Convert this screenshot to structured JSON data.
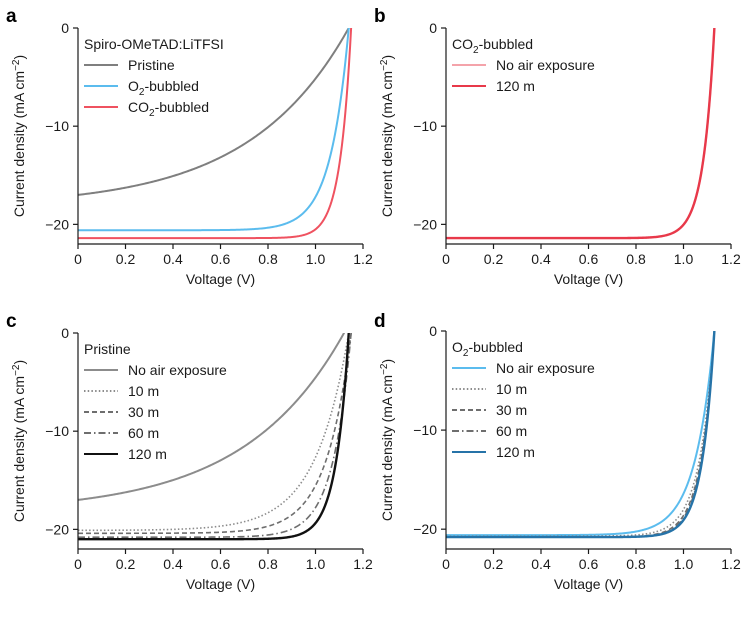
{
  "figure": {
    "panels": [
      {
        "letter": "a",
        "xlabel": "Voltage (V)",
        "ylabel_main": "Current density (mA cm",
        "ylabel_sup": "−2",
        "ylabel_end": ")",
        "legend_title": "Spiro-OMeTAD:LiTFSI"
      },
      {
        "letter": "b",
        "xlabel": "Voltage (V)",
        "ylabel_main": "Current density (mA cm",
        "ylabel_sup": "−2",
        "ylabel_end": ")",
        "legend_title_pre": "CO",
        "legend_title_sub": "2",
        "legend_title_post": "-bubbled"
      },
      {
        "letter": "c",
        "xlabel": "Voltage (V)",
        "ylabel_main": "Current density (mA cm",
        "ylabel_sup": "−2",
        "ylabel_end": ")",
        "legend_title": "Pristine"
      },
      {
        "letter": "d",
        "xlabel": "Voltage (V)",
        "ylabel_main": "Current density (mA cm",
        "ylabel_sup": "−2",
        "ylabel_end": ")",
        "legend_title_pre": "O",
        "legend_title_sub": "2",
        "legend_title_post": "-bubbled"
      }
    ]
  },
  "chart_data": [
    {
      "panel": "a",
      "type": "line",
      "xlabel": "Voltage (V)",
      "ylabel": "Current density (mA cm−2)",
      "xlim": [
        0,
        1.2
      ],
      "ylim": [
        -22,
        0
      ],
      "xticks": [
        "0",
        "0.2",
        "0.4",
        "0.6",
        "0.8",
        "1.0",
        "1.2"
      ],
      "yticks": [
        "0",
        "−10",
        "−20"
      ],
      "legend_title": "Spiro-OMeTAD:LiTFSI",
      "legend_position": "top-left",
      "series": [
        {
          "name": "Pristine",
          "label_pre": "Pristine",
          "label_sub": "",
          "label_post": "",
          "color": "#7f7f7f",
          "dash": "solid",
          "jsc": -17.0,
          "voc": 1.14,
          "ff": 0.4
        },
        {
          "name": "O2-bubbled",
          "label_pre": "O",
          "label_sub": "2",
          "label_post": "-bubbled",
          "color": "#5bbcee",
          "dash": "solid",
          "jsc": -20.6,
          "voc": 1.14,
          "ff": 0.74
        },
        {
          "name": "CO2-bubbled",
          "label_pre": "CO",
          "label_sub": "2",
          "label_post": "-bubbled",
          "color": "#ef5260",
          "dash": "solid",
          "jsc": -21.4,
          "voc": 1.15,
          "ff": 0.84
        }
      ]
    },
    {
      "panel": "b",
      "type": "line",
      "xlabel": "Voltage (V)",
      "ylabel": "Current density (mA cm−2)",
      "xlim": [
        0,
        1.2
      ],
      "ylim": [
        -22,
        0
      ],
      "xticks": [
        "0",
        "0.2",
        "0.4",
        "0.6",
        "0.8",
        "1.0",
        "1.2"
      ],
      "yticks": [
        "0",
        "−10",
        "−20"
      ],
      "legend_title": "CO2-bubbled",
      "legend_position": "top-left",
      "series": [
        {
          "name": "No air exposure",
          "label_pre": "No air exposure",
          "label_sub": "",
          "label_post": "",
          "color": "#f4a3aa",
          "dash": "solid",
          "jsc": -21.4,
          "voc": 1.13,
          "ff": 0.84
        },
        {
          "name": "120 m",
          "label_pre": "120 m",
          "label_sub": "",
          "label_post": "",
          "color": "#e8394a",
          "dash": "solid",
          "jsc": -21.4,
          "voc": 1.13,
          "ff": 0.84
        }
      ]
    },
    {
      "panel": "c",
      "type": "line",
      "xlabel": "Voltage (V)",
      "ylabel": "Current density (mA cm−2)",
      "xlim": [
        0,
        1.2
      ],
      "ylim": [
        -22,
        0
      ],
      "xticks": [
        "0",
        "0.2",
        "0.4",
        "0.6",
        "0.8",
        "1.0",
        "1.2"
      ],
      "yticks": [
        "0",
        "−10",
        "−20"
      ],
      "legend_title": "Pristine",
      "legend_position": "top-left",
      "series": [
        {
          "name": "No air exposure",
          "label_pre": "No air exposure",
          "label_sub": "",
          "label_post": "",
          "color": "#8c8c8c",
          "dash": "solid",
          "jsc": -17.0,
          "voc": 1.12,
          "ff": 0.4
        },
        {
          "name": "10 m",
          "label_pre": "10 m",
          "label_sub": "",
          "label_post": "",
          "color": "#8c8c8c",
          "dash": "dotted",
          "jsc": -20.1,
          "voc": 1.14,
          "ff": 0.62
        },
        {
          "name": "30 m",
          "label_pre": "30 m",
          "label_sub": "",
          "label_post": "",
          "color": "#6e6e6e",
          "dash": "dashed",
          "jsc": -20.4,
          "voc": 1.15,
          "ff": 0.68
        },
        {
          "name": "60 m",
          "label_pre": "60 m",
          "label_sub": "",
          "label_post": "",
          "color": "#6e6e6e",
          "dash": "dashdot",
          "jsc": -20.8,
          "voc": 1.15,
          "ff": 0.74
        },
        {
          "name": "120 m",
          "label_pre": "120 m",
          "label_sub": "",
          "label_post": "",
          "color": "#111111",
          "dash": "solid",
          "jsc": -21.0,
          "voc": 1.14,
          "ff": 0.81
        }
      ]
    },
    {
      "panel": "d",
      "type": "line",
      "xlabel": "Voltage (V)",
      "ylabel": "Current density (mA cm−2)",
      "xlim": [
        0,
        1.2
      ],
      "ylim": [
        -22,
        0
      ],
      "xticks": [
        "0",
        "0.2",
        "0.4",
        "0.6",
        "0.8",
        "1.0",
        "1.2"
      ],
      "yticks": [
        "0",
        "−10",
        "−20"
      ],
      "legend_title": "O2-bubbled",
      "legend_position": "top-left",
      "series": [
        {
          "name": "No air exposure",
          "label_pre": "No air exposure",
          "label_sub": "",
          "label_post": "",
          "color": "#5bbcee",
          "dash": "solid",
          "jsc": -20.6,
          "voc": 1.13,
          "ff": 0.73
        },
        {
          "name": "10 m",
          "label_pre": "10 m",
          "label_sub": "",
          "label_post": "",
          "color": "#8c8c8c",
          "dash": "dotted",
          "jsc": -20.7,
          "voc": 1.13,
          "ff": 0.78
        },
        {
          "name": "30 m",
          "label_pre": "30 m",
          "label_sub": "",
          "label_post": "",
          "color": "#6e6e6e",
          "dash": "dashed",
          "jsc": -20.8,
          "voc": 1.13,
          "ff": 0.8
        },
        {
          "name": "60 m",
          "label_pre": "60 m",
          "label_sub": "",
          "label_post": "",
          "color": "#6e6e6e",
          "dash": "dashdot",
          "jsc": -20.8,
          "voc": 1.13,
          "ff": 0.81
        },
        {
          "name": "120 m",
          "label_pre": "120 m",
          "label_sub": "",
          "label_post": "",
          "color": "#2673a8",
          "dash": "solid",
          "jsc": -20.8,
          "voc": 1.13,
          "ff": 0.82
        }
      ]
    }
  ]
}
